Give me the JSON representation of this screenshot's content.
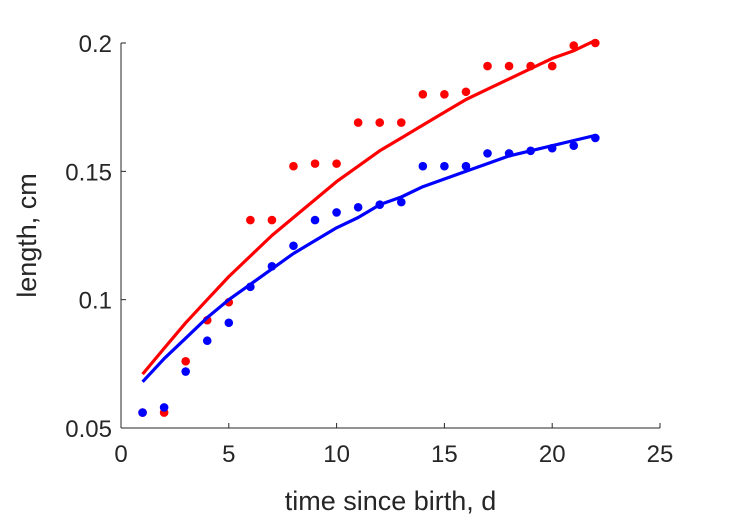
{
  "chart_data": {
    "type": "scatter",
    "title": "",
    "xlabel": "time since birth, d",
    "ylabel": "length, cm",
    "xlim": [
      0,
      25
    ],
    "ylim": [
      0.05,
      0.2
    ],
    "xticks": [
      0,
      5,
      10,
      15,
      20,
      25
    ],
    "yticks": [
      0.05,
      0.1,
      0.15,
      0.2
    ],
    "xtick_labels": [
      "0",
      "5",
      "10",
      "15",
      "20",
      "25"
    ],
    "ytick_labels": [
      "0.05",
      "0.1",
      "0.15",
      "0.2"
    ],
    "grid": false,
    "legend": "none",
    "series": [
      {
        "color": "#ff0000",
        "x": [
          1,
          2,
          3,
          4,
          5,
          6,
          7,
          8,
          9,
          10,
          11,
          12,
          13,
          14,
          15,
          16,
          17,
          18,
          19,
          20,
          21,
          22
        ],
        "y": [
          0.056,
          0.056,
          0.076,
          0.092,
          0.099,
          0.131,
          0.131,
          0.152,
          0.153,
          0.153,
          0.169,
          0.169,
          0.169,
          0.18,
          0.18,
          0.181,
          0.191,
          0.191,
          0.191,
          0.191,
          0.199,
          0.2
        ],
        "fit": {
          "x": [
            1,
            2,
            3,
            4,
            5,
            6,
            7,
            8,
            9,
            10,
            11,
            12,
            13,
            14,
            15,
            16,
            17,
            18,
            19,
            20,
            21,
            22
          ],
          "y": [
            0.071,
            0.081,
            0.091,
            0.1,
            0.109,
            0.117,
            0.125,
            0.132,
            0.139,
            0.146,
            0.152,
            0.158,
            0.163,
            0.168,
            0.173,
            0.178,
            0.182,
            0.186,
            0.19,
            0.194,
            0.197,
            0.201
          ]
        }
      },
      {
        "color": "#0000ff",
        "x": [
          1,
          2,
          3,
          4,
          5,
          6,
          7,
          8,
          9,
          10,
          11,
          12,
          13,
          14,
          15,
          16,
          17,
          18,
          19,
          20,
          21,
          22
        ],
        "y": [
          0.056,
          0.058,
          0.072,
          0.084,
          0.091,
          0.105,
          0.113,
          0.121,
          0.131,
          0.134,
          0.136,
          0.137,
          0.138,
          0.152,
          0.152,
          0.152,
          0.157,
          0.157,
          0.158,
          0.159,
          0.16,
          0.163
        ],
        "fit": {
          "x": [
            1,
            2,
            3,
            4,
            5,
            6,
            7,
            8,
            9,
            10,
            11,
            12,
            13,
            14,
            15,
            16,
            17,
            18,
            19,
            20,
            21,
            22
          ],
          "y": [
            0.068,
            0.077,
            0.085,
            0.093,
            0.1,
            0.106,
            0.112,
            0.118,
            0.123,
            0.128,
            0.132,
            0.137,
            0.14,
            0.144,
            0.147,
            0.15,
            0.153,
            0.156,
            0.158,
            0.16,
            0.162,
            0.164
          ]
        }
      }
    ]
  }
}
